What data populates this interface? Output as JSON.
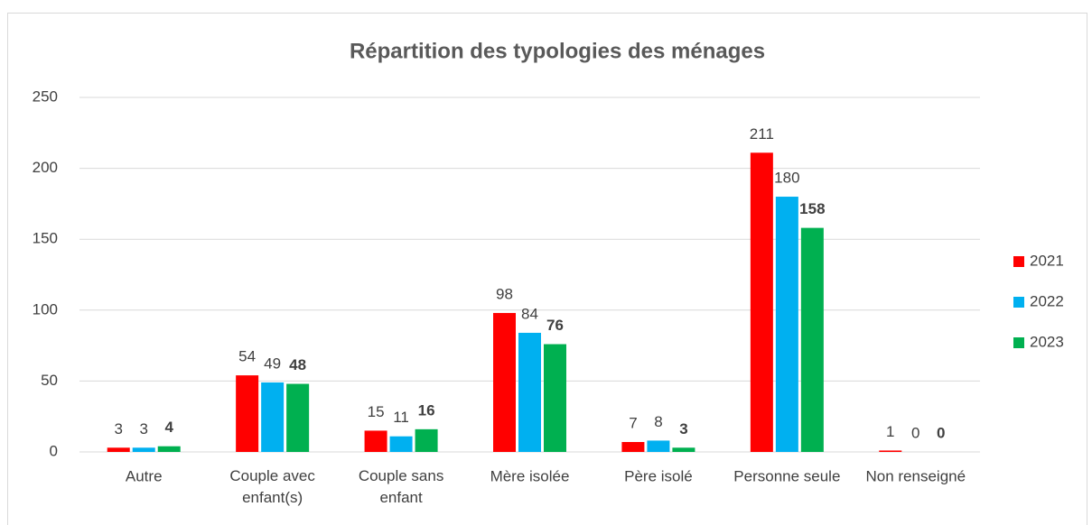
{
  "chart_data": {
    "type": "bar",
    "title": "Répartition des typologies des ménages",
    "categories": [
      "Autre",
      "Couple avec enfant(s)",
      "Couple sans enfant",
      "Mère isolée",
      "Père isolé",
      "Personne seule",
      "Non renseigné"
    ],
    "series": [
      {
        "name": "2021",
        "color": "#ff0000",
        "values": [
          3,
          54,
          15,
          98,
          7,
          211,
          1
        ]
      },
      {
        "name": "2022",
        "color": "#00b0f0",
        "values": [
          3,
          49,
          11,
          84,
          8,
          180,
          0
        ]
      },
      {
        "name": "2023",
        "color": "#00b050",
        "values": [
          4,
          48,
          16,
          76,
          3,
          158,
          0
        ],
        "label_style": "bold"
      }
    ],
    "ylim": [
      0,
      250
    ],
    "yticks": [
      0,
      50,
      100,
      150,
      200,
      250
    ],
    "grid": true,
    "legend": "right"
  }
}
